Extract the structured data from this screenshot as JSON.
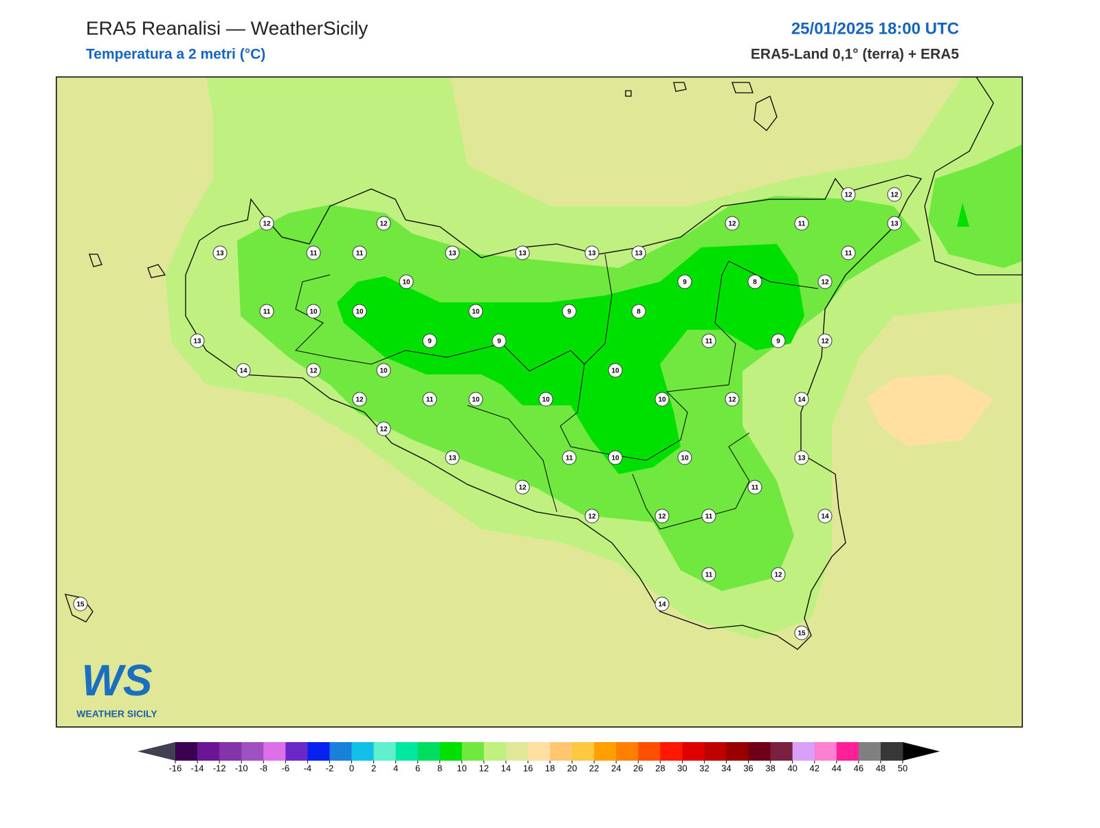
{
  "header": {
    "title": "ERA5 Reanalisi — WeatherSicily",
    "subtitle": "Temperatura a 2 metri (°C)",
    "datetime": "25/01/2025 18:00 UTC",
    "source": "ERA5-Land 0,1° (terra) + ERA5"
  },
  "stations": [
    12,
    12,
    13,
    11,
    11,
    13,
    13,
    13,
    13,
    12,
    11,
    12,
    12,
    13,
    11,
    10,
    9,
    8,
    12,
    11,
    10,
    10,
    10,
    9,
    8,
    9,
    9,
    11,
    9,
    12,
    13,
    14,
    12,
    10,
    10,
    12,
    11,
    10,
    10,
    10,
    12,
    14,
    12,
    13,
    11,
    10,
    10,
    13,
    12,
    11,
    12,
    12,
    11,
    14,
    11,
    12,
    14,
    15,
    15
  ],
  "colorbar": {
    "ticks": [
      -16,
      -14,
      -12,
      -10,
      -8,
      -6,
      -4,
      -2,
      0,
      2,
      4,
      6,
      8,
      10,
      12,
      14,
      16,
      18,
      20,
      22,
      24,
      26,
      28,
      30,
      32,
      34,
      36,
      38,
      40,
      42,
      44,
      46,
      48,
      50
    ],
    "colors": [
      "#3b0050",
      "#6a1596",
      "#8433a8",
      "#a050c0",
      "#dd70e8",
      "#6a28c8",
      "#0820f0",
      "#1a80dc",
      "#10c0e8",
      "#60f0d0",
      "#00e8a0",
      "#00dc60",
      "#00e000",
      "#70e840",
      "#c0f080",
      "#e0e898",
      "#ffe0a0",
      "#ffc870",
      "#ffc840",
      "#ffa000",
      "#ff8000",
      "#ff5000",
      "#ff1800",
      "#e00000",
      "#c00000",
      "#980000",
      "#700018",
      "#7a2040",
      "#d8a0f8",
      "#ff80d0",
      "#ff2098",
      "#808080",
      "#383838"
    ],
    "under_color": "#404050",
    "over_color": "#000000"
  },
  "logo": {
    "mark": "WS",
    "text": "WEATHER SICILY"
  }
}
